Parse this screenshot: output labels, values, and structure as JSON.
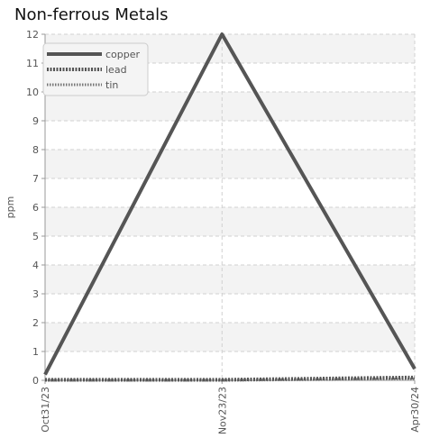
{
  "chart_data": {
    "type": "line",
    "title": "Non-ferrous Metals",
    "xlabel": "",
    "ylabel": "ppm",
    "x": [
      "Oct31/23",
      "Nov23/23",
      "Apr30/24"
    ],
    "ylim": [
      0,
      12
    ],
    "yticks": [
      0,
      1,
      2,
      3,
      4,
      5,
      6,
      7,
      8,
      9,
      10,
      11,
      12
    ],
    "grid": true,
    "legend_position": "top-left",
    "series": [
      {
        "name": "copper",
        "values": [
          0.2,
          12,
          0.4
        ],
        "style": "solid",
        "color": "#555555"
      },
      {
        "name": "lead",
        "values": [
          0.02,
          0.02,
          0.1
        ],
        "style": "dotted-thick",
        "color": "#555555"
      },
      {
        "name": "tin",
        "values": [
          0.0,
          0.0,
          0.05
        ],
        "style": "dotted-thin",
        "color": "#777777"
      }
    ],
    "x_positions": [
      0,
      0.4787,
      1
    ]
  }
}
